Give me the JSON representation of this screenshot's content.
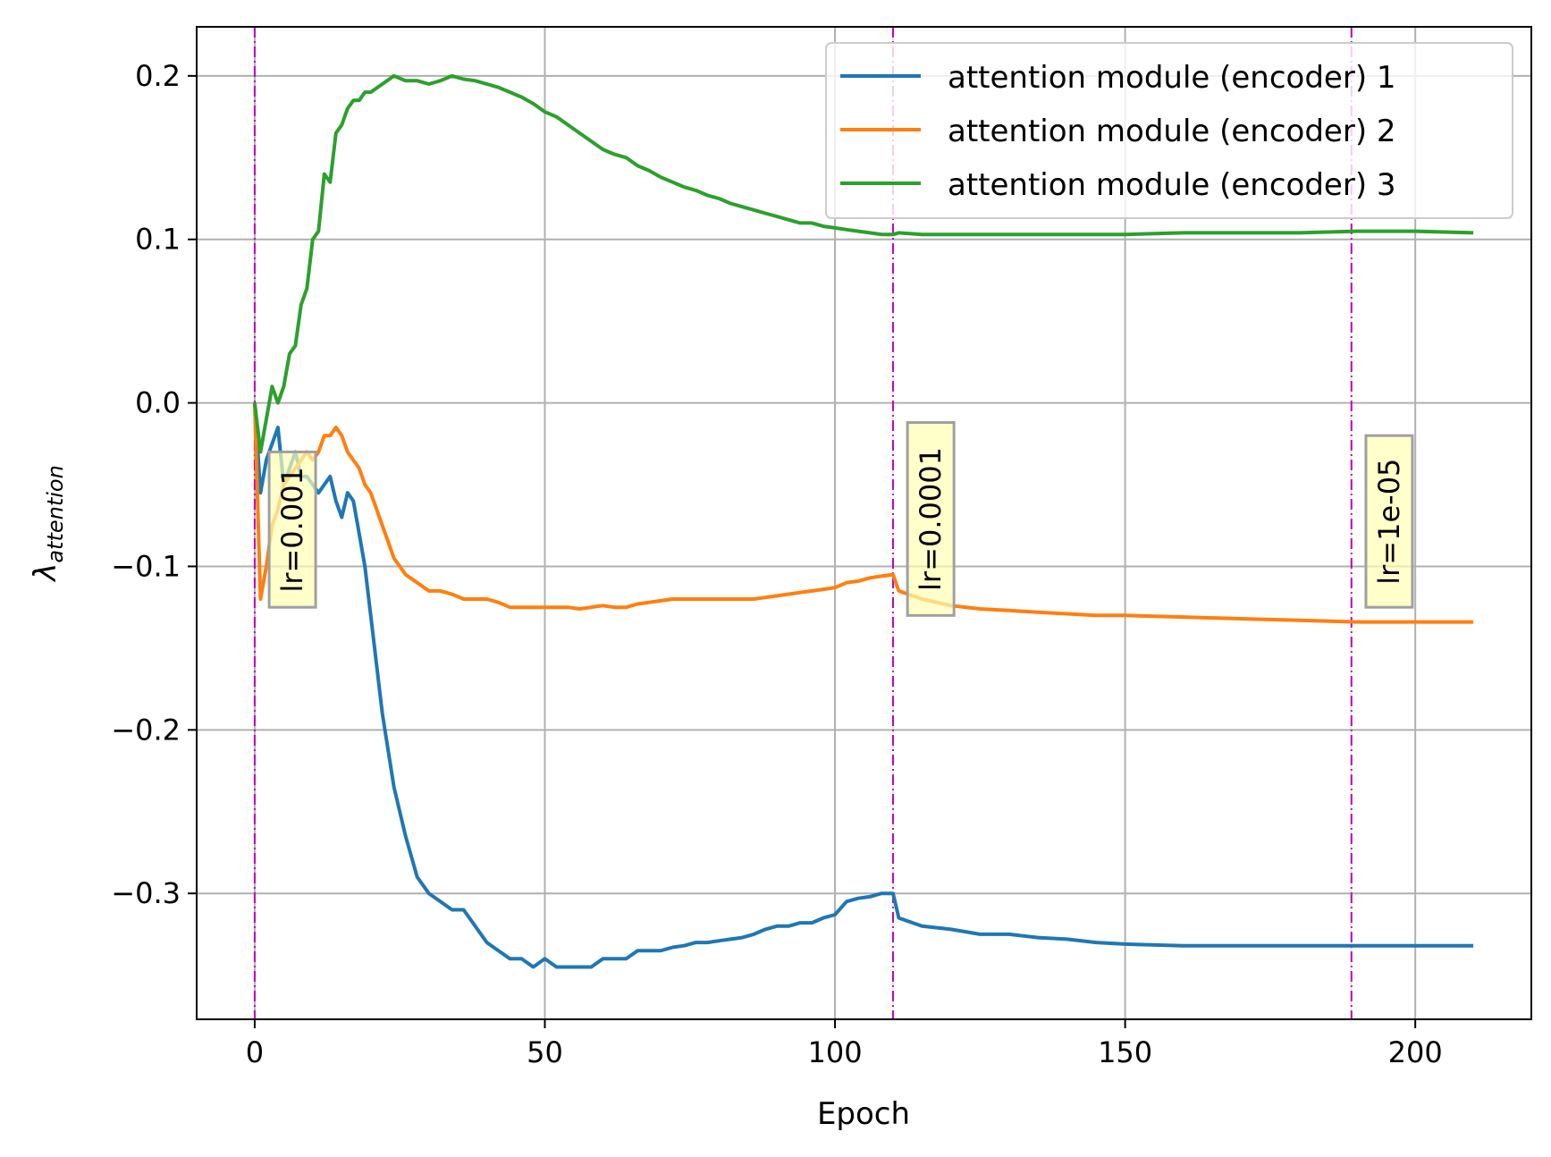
{
  "chart_data": {
    "type": "line",
    "xlabel": "Epoch",
    "ylabel_symbol": "λ",
    "ylabel_subscript": "attention",
    "xlim": [
      -10,
      220
    ],
    "ylim": [
      -0.377,
      0.23
    ],
    "xticks": [
      0,
      50,
      100,
      150,
      200
    ],
    "xtick_labels": [
      "0",
      "50",
      "100",
      "150",
      "200"
    ],
    "yticks": [
      -0.3,
      -0.2,
      -0.1,
      0.0,
      0.1,
      0.2
    ],
    "ytick_labels": [
      "−0.3",
      "−0.2",
      "−0.1",
      "0.0",
      "0.1",
      "0.2"
    ],
    "grid": true,
    "legend_position": "top-right",
    "series": [
      {
        "name": "attention module (encoder) 1",
        "color": "#1f77b4",
        "x": [
          0,
          1,
          2,
          3,
          4,
          5,
          6,
          7,
          8,
          9,
          10,
          11,
          12,
          13,
          14,
          15,
          16,
          17,
          18,
          19,
          20,
          22,
          24,
          26,
          28,
          30,
          32,
          34,
          36,
          38,
          40,
          42,
          44,
          46,
          48,
          50,
          52,
          54,
          56,
          58,
          60,
          62,
          64,
          66,
          68,
          70,
          72,
          74,
          76,
          78,
          80,
          82,
          84,
          86,
          88,
          90,
          92,
          94,
          96,
          98,
          100,
          102,
          104,
          106,
          108,
          110,
          111,
          115,
          120,
          125,
          130,
          135,
          140,
          145,
          150,
          160,
          170,
          180,
          190,
          200,
          210
        ],
        "y": [
          0.0,
          -0.055,
          -0.035,
          -0.025,
          -0.015,
          -0.05,
          -0.04,
          -0.03,
          -0.045,
          -0.045,
          -0.05,
          -0.055,
          -0.05,
          -0.045,
          -0.06,
          -0.07,
          -0.055,
          -0.06,
          -0.08,
          -0.1,
          -0.13,
          -0.19,
          -0.235,
          -0.265,
          -0.29,
          -0.3,
          -0.305,
          -0.31,
          -0.31,
          -0.32,
          -0.33,
          -0.335,
          -0.34,
          -0.34,
          -0.345,
          -0.34,
          -0.345,
          -0.345,
          -0.345,
          -0.345,
          -0.34,
          -0.34,
          -0.34,
          -0.335,
          -0.335,
          -0.335,
          -0.333,
          -0.332,
          -0.33,
          -0.33,
          -0.329,
          -0.328,
          -0.327,
          -0.325,
          -0.322,
          -0.32,
          -0.32,
          -0.318,
          -0.318,
          -0.315,
          -0.313,
          -0.305,
          -0.303,
          -0.302,
          -0.3,
          -0.3,
          -0.315,
          -0.32,
          -0.322,
          -0.325,
          -0.325,
          -0.327,
          -0.328,
          -0.33,
          -0.331,
          -0.332,
          -0.332,
          -0.332,
          -0.332,
          -0.332,
          -0.332
        ]
      },
      {
        "name": "attention module (encoder) 2",
        "color": "#ff7f0e",
        "x": [
          0,
          1,
          2,
          3,
          4,
          5,
          6,
          7,
          8,
          9,
          10,
          11,
          12,
          13,
          14,
          15,
          16,
          17,
          18,
          19,
          20,
          22,
          24,
          26,
          28,
          30,
          32,
          34,
          36,
          38,
          40,
          42,
          44,
          46,
          48,
          50,
          52,
          54,
          56,
          58,
          60,
          62,
          64,
          66,
          68,
          70,
          72,
          74,
          76,
          78,
          80,
          82,
          84,
          86,
          88,
          90,
          92,
          94,
          96,
          98,
          100,
          102,
          104,
          106,
          108,
          110,
          111,
          115,
          120,
          125,
          130,
          135,
          140,
          145,
          150,
          160,
          170,
          180,
          190,
          200,
          210
        ],
        "y": [
          0.0,
          -0.12,
          -0.1,
          -0.075,
          -0.065,
          -0.05,
          -0.045,
          -0.04,
          -0.035,
          -0.03,
          -0.035,
          -0.03,
          -0.02,
          -0.02,
          -0.015,
          -0.02,
          -0.03,
          -0.035,
          -0.04,
          -0.05,
          -0.055,
          -0.075,
          -0.095,
          -0.105,
          -0.11,
          -0.115,
          -0.115,
          -0.117,
          -0.12,
          -0.12,
          -0.12,
          -0.122,
          -0.125,
          -0.125,
          -0.125,
          -0.125,
          -0.125,
          -0.125,
          -0.126,
          -0.125,
          -0.124,
          -0.125,
          -0.125,
          -0.123,
          -0.122,
          -0.121,
          -0.12,
          -0.12,
          -0.12,
          -0.12,
          -0.12,
          -0.12,
          -0.12,
          -0.12,
          -0.119,
          -0.118,
          -0.117,
          -0.116,
          -0.115,
          -0.114,
          -0.113,
          -0.11,
          -0.109,
          -0.107,
          -0.106,
          -0.105,
          -0.115,
          -0.12,
          -0.124,
          -0.126,
          -0.127,
          -0.128,
          -0.129,
          -0.13,
          -0.13,
          -0.131,
          -0.132,
          -0.133,
          -0.134,
          -0.134,
          -0.134
        ]
      },
      {
        "name": "attention module (encoder) 3",
        "color": "#2ca02c",
        "x": [
          0,
          1,
          2,
          3,
          4,
          5,
          6,
          7,
          8,
          9,
          10,
          11,
          12,
          13,
          14,
          15,
          16,
          17,
          18,
          19,
          20,
          22,
          24,
          26,
          28,
          30,
          32,
          34,
          36,
          38,
          40,
          42,
          44,
          46,
          48,
          50,
          52,
          54,
          56,
          58,
          60,
          62,
          64,
          66,
          68,
          70,
          72,
          74,
          76,
          78,
          80,
          82,
          84,
          86,
          88,
          90,
          92,
          94,
          96,
          98,
          100,
          102,
          104,
          106,
          108,
          110,
          111,
          115,
          120,
          125,
          130,
          135,
          140,
          145,
          150,
          160,
          170,
          180,
          190,
          200,
          210
        ],
        "y": [
          0.0,
          -0.03,
          -0.01,
          0.01,
          0.0,
          0.01,
          0.03,
          0.035,
          0.06,
          0.07,
          0.1,
          0.105,
          0.14,
          0.135,
          0.165,
          0.17,
          0.18,
          0.185,
          0.185,
          0.19,
          0.19,
          0.195,
          0.2,
          0.197,
          0.197,
          0.195,
          0.197,
          0.2,
          0.198,
          0.197,
          0.195,
          0.193,
          0.19,
          0.187,
          0.183,
          0.178,
          0.175,
          0.17,
          0.165,
          0.16,
          0.155,
          0.152,
          0.15,
          0.145,
          0.142,
          0.138,
          0.135,
          0.132,
          0.13,
          0.127,
          0.125,
          0.122,
          0.12,
          0.118,
          0.116,
          0.114,
          0.112,
          0.11,
          0.11,
          0.108,
          0.107,
          0.106,
          0.105,
          0.104,
          0.103,
          0.103,
          0.104,
          0.103,
          0.103,
          0.103,
          0.103,
          0.103,
          0.103,
          0.103,
          0.103,
          0.104,
          0.104,
          0.104,
          0.105,
          0.105,
          0.104
        ]
      }
    ],
    "vlines": {
      "color": "#bf00bf",
      "style": "dash-dot",
      "x": [
        0,
        110,
        189
      ]
    },
    "annotations": [
      {
        "text": "lr=0.001",
        "x": 6.5,
        "y_top": -0.03,
        "y_bottom": -0.125,
        "rotation": -90
      },
      {
        "text": "lr=0.0001",
        "x": 116.5,
        "y_top": -0.012,
        "y_bottom": -0.13,
        "rotation": -90
      },
      {
        "text": "lr=1e-05",
        "x": 195.5,
        "y_top": -0.02,
        "y_bottom": -0.125,
        "rotation": -90
      }
    ],
    "annotation_box_color": "#ffffb3"
  }
}
